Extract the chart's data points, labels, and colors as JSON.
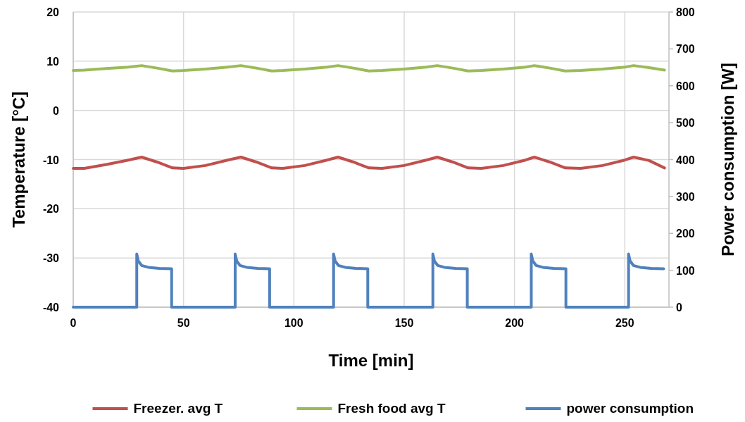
{
  "chart_data": {
    "type": "line",
    "xlabel": "Time [min]",
    "ylabel": "Temperature [°C]",
    "y2label": "Power consumption [W]",
    "xlim": [
      0,
      270
    ],
    "xticks": [
      0,
      50,
      100,
      150,
      200,
      250
    ],
    "ylim": [
      -40,
      20
    ],
    "yticks": [
      -40,
      -30,
      -20,
      -10,
      0,
      10,
      20
    ],
    "y2lim": [
      0,
      800
    ],
    "y2ticks": [
      0,
      100,
      200,
      300,
      400,
      500,
      600,
      700,
      800
    ],
    "grid": true,
    "legend": "bottom",
    "line_style": "solid",
    "series": [
      {
        "name": "Freezer. avg T",
        "color": "#c0504d",
        "x": [
          0,
          5,
          15,
          25,
          31,
          38,
          45,
          50,
          60,
          70,
          76,
          83,
          90,
          95,
          105,
          115,
          120,
          127,
          134,
          140,
          150,
          160,
          165,
          172,
          179,
          185,
          195,
          205,
          209,
          216,
          223,
          230,
          240,
          250,
          254,
          261,
          268
        ],
        "values": [
          -11.8,
          -11.8,
          -11,
          -10.1,
          -9.5,
          -10.5,
          -11.7,
          -11.8,
          -11.2,
          -10.1,
          -9.5,
          -10.5,
          -11.7,
          -11.8,
          -11.2,
          -10.1,
          -9.5,
          -10.5,
          -11.7,
          -11.8,
          -11.2,
          -10.1,
          -9.5,
          -10.5,
          -11.7,
          -11.8,
          -11.2,
          -10.1,
          -9.5,
          -10.5,
          -11.7,
          -11.8,
          -11.2,
          -10.1,
          -9.5,
          -10.2,
          -11.7
        ]
      },
      {
        "name": "Fresh food avg T",
        "color": "#9bbb59",
        "x": [
          0,
          5,
          15,
          25,
          31,
          38,
          45,
          50,
          60,
          70,
          76,
          83,
          90,
          95,
          105,
          115,
          120,
          127,
          134,
          140,
          150,
          160,
          165,
          172,
          179,
          185,
          195,
          205,
          209,
          216,
          223,
          230,
          240,
          250,
          254,
          261,
          268
        ],
        "values": [
          8.1,
          8.2,
          8.5,
          8.8,
          9.1,
          8.6,
          8.0,
          8.1,
          8.4,
          8.8,
          9.1,
          8.6,
          8.0,
          8.1,
          8.4,
          8.8,
          9.1,
          8.6,
          8.0,
          8.1,
          8.4,
          8.8,
          9.1,
          8.6,
          8.0,
          8.1,
          8.4,
          8.8,
          9.1,
          8.6,
          8.0,
          8.1,
          8.4,
          8.8,
          9.1,
          8.7,
          8.2
        ]
      },
      {
        "name": "power consumption",
        "color": "#4f81bd",
        "axis": "y2",
        "x": [
          0,
          28.8,
          28.8,
          29.5,
          31,
          34,
          39,
          44.6,
          44.6,
          73.4,
          73.4,
          74.1,
          75.6,
          78.6,
          83.6,
          89,
          89,
          118,
          118,
          118.7,
          120.2,
          123.2,
          128.2,
          133.5,
          133.5,
          163,
          163,
          163.7,
          165.2,
          168.2,
          173.2,
          178.6,
          178.6,
          207.6,
          207.6,
          208.3,
          209.8,
          212.8,
          217.8,
          223.3,
          223.3,
          251.7,
          251.7,
          252.4,
          253.9,
          256.9,
          261.9,
          267.6
        ],
        "values": [
          0,
          0,
          144,
          125,
          113,
          108,
          105,
          104,
          0,
          0,
          144,
          125,
          113,
          108,
          105,
          104,
          0,
          0,
          144,
          125,
          113,
          108,
          105,
          104,
          0,
          0,
          144,
          125,
          113,
          108,
          105,
          104,
          0,
          0,
          144,
          125,
          113,
          108,
          105,
          104,
          0,
          0,
          144,
          125,
          113,
          108,
          105,
          104
        ]
      }
    ]
  }
}
